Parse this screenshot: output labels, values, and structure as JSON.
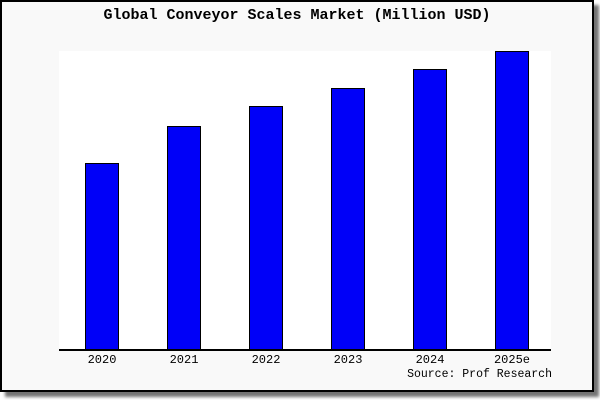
{
  "style": {
    "card_bg": "#f9f9f9",
    "plot_bg": "#ffffff",
    "bar_fill": "#0000f8",
    "bar_border": "#000000",
    "axis_color": "#000000"
  },
  "chart_data": {
    "type": "bar",
    "title": "Global Conveyor Scales Market (Million USD)",
    "categories": [
      "2020",
      "2021",
      "2022",
      "2023",
      "2024",
      "2025e"
    ],
    "values": [
      62.5,
      75,
      81.5,
      87.5,
      94,
      100
    ],
    "value_scale": "relative percent of tallest bar (y-axis is unlabeled in the image)",
    "xlabel": "",
    "ylabel": "",
    "ylim": [
      0,
      100
    ],
    "grid": false,
    "legend": null,
    "bar_color": "#0000f8",
    "source": "Source: Prof Research"
  }
}
